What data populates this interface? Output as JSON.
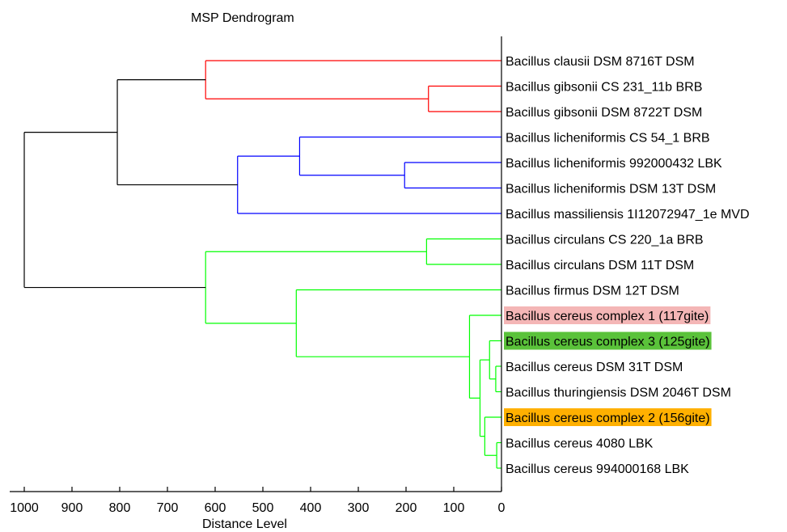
{
  "chart_data": {
    "type": "dendrogram",
    "title": "MSP Dendrogram",
    "xlabel": "Distance Level",
    "xlim": [
      1000,
      0
    ],
    "xticks": [
      1000,
      900,
      800,
      700,
      600,
      500,
      400,
      300,
      200,
      100,
      0
    ],
    "leaves": [
      {
        "label": "Bacillus clausii DSM 8716T DSM",
        "highlight": null
      },
      {
        "label": "Bacillus gibsonii CS 231_11b BRB",
        "highlight": null
      },
      {
        "label": "Bacillus gibsonii DSM 8722T DSM",
        "highlight": null
      },
      {
        "label": "Bacillus licheniformis CS 54_1 BRB",
        "highlight": null
      },
      {
        "label": "Bacillus licheniformis 992000432 LBK",
        "highlight": null
      },
      {
        "label": "Bacillus licheniformis DSM 13T DSM",
        "highlight": null
      },
      {
        "label": "Bacillus massiliensis 1I12072947_1e MVD",
        "highlight": null
      },
      {
        "label": "Bacillus circulans CS 220_1a BRB",
        "highlight": null
      },
      {
        "label": "Bacillus circulans DSM 11T DSM",
        "highlight": null
      },
      {
        "label": "Bacillus firmus DSM 12T DSM",
        "highlight": null
      },
      {
        "label": "Bacillus cereus complex 1 (117gite)",
        "highlight": "#f4b6b6"
      },
      {
        "label": "Bacillus cereus complex 3 (125gite)",
        "highlight": "#5ac23a"
      },
      {
        "label": "Bacillus cereus DSM 31T DSM",
        "highlight": null
      },
      {
        "label": "Bacillus thuringiensis DSM 2046T DSM",
        "highlight": null
      },
      {
        "label": "Bacillus cereus complex 2 (156gite)",
        "highlight": "#ffb000"
      },
      {
        "label": "Bacillus cereus 4080 LBK",
        "highlight": null
      },
      {
        "label": "Bacillus cereus 994000168 LBK",
        "highlight": null
      }
    ],
    "merges": [
      {
        "a": "L1",
        "b": "L2",
        "height": 153,
        "color": "#ff0000"
      },
      {
        "a": "L0",
        "b": "N0",
        "height": 620,
        "color": "#ff0000"
      },
      {
        "a": "L4",
        "b": "L5",
        "height": 203,
        "color": "#0000ff"
      },
      {
        "a": "L3",
        "b": "N2",
        "height": 423,
        "color": "#0000ff"
      },
      {
        "a": "N3",
        "b": "L6",
        "height": 553,
        "color": "#0000ff"
      },
      {
        "a": "N1",
        "b": "N4",
        "height": 805,
        "color": "#000000"
      },
      {
        "a": "L7",
        "b": "L8",
        "height": 157,
        "color": "#00ff00"
      },
      {
        "a": "L12",
        "b": "L13",
        "height": 12,
        "color": "#00ff00"
      },
      {
        "a": "L11",
        "b": "N7",
        "height": 25,
        "color": "#00ff00"
      },
      {
        "a": "L15",
        "b": "L16",
        "height": 10,
        "color": "#00ff00"
      },
      {
        "a": "L14",
        "b": "N9",
        "height": 35,
        "color": "#00ff00"
      },
      {
        "a": "N8",
        "b": "N10",
        "height": 45,
        "color": "#00ff00"
      },
      {
        "a": "L10",
        "b": "N11",
        "height": 67,
        "color": "#00ff00"
      },
      {
        "a": "L9",
        "b": "N12",
        "height": 430,
        "color": "#00ff00"
      },
      {
        "a": "N6",
        "b": "N13",
        "height": 620,
        "color": "#00ff00"
      },
      {
        "a": "N5",
        "b": "N14",
        "height": 1000,
        "color": "#000000"
      }
    ]
  }
}
